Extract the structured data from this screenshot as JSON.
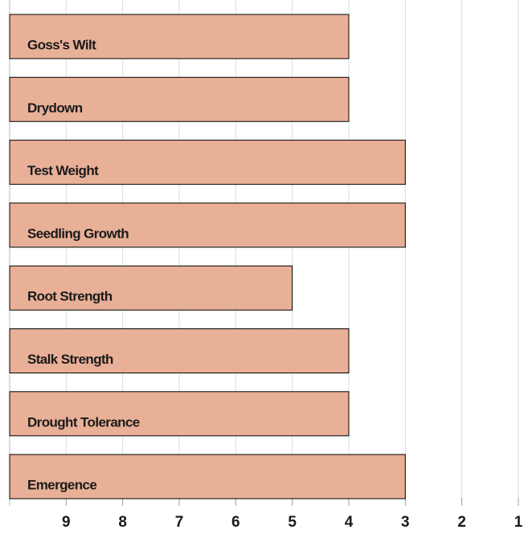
{
  "chart_data": {
    "type": "barh",
    "categories": [
      "Goss's Wilt",
      "Drydown",
      "Test Weight",
      "Seedling Growth",
      "Root Strength",
      "Stalk Strength",
      "Drought Tolerance",
      "Emergence"
    ],
    "values": [
      4,
      4,
      3,
      3,
      5,
      4,
      4,
      3
    ],
    "color": "#e8b097",
    "xlim": [
      10,
      1
    ],
    "xticks": [
      9,
      8,
      7,
      6,
      5,
      4,
      3,
      2,
      1
    ],
    "grid": true
  }
}
